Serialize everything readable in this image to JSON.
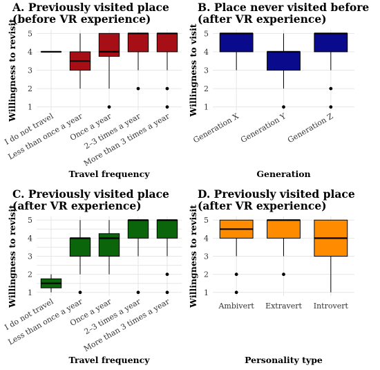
{
  "chart_data": [
    {
      "type": "box",
      "title_lines": [
        "A. Previously visited place",
        "(before VR experience)"
      ],
      "xlabel": "Travel frequency",
      "ylabel": "Willingness to revisit",
      "ylim": [
        0.8,
        5.2
      ],
      "yticks": [
        1,
        2,
        3,
        4,
        5
      ],
      "fill": "#a50f15",
      "categories": [
        "I do not travel",
        "Less than once a year",
        "Once a year",
        "2–3 times a year",
        "More than 3 times a year"
      ],
      "boxes": [
        {
          "q1": 4,
          "median": 4,
          "q3": 4,
          "whisker_low": 4,
          "whisker_high": 4,
          "outliers": []
        },
        {
          "q1": 3,
          "median": 3.5,
          "q3": 4,
          "whisker_low": 2,
          "whisker_high": 5,
          "outliers": []
        },
        {
          "q1": 3.75,
          "median": 4,
          "q3": 5,
          "whisker_low": 2,
          "whisker_high": 5,
          "outliers": [
            1
          ]
        },
        {
          "q1": 4,
          "median": 5,
          "q3": 5,
          "whisker_low": 3,
          "whisker_high": 5,
          "outliers": [
            2
          ]
        },
        {
          "q1": 4,
          "median": 5,
          "q3": 5,
          "whisker_low": 3,
          "whisker_high": 5,
          "outliers": [
            2,
            1
          ]
        }
      ]
    },
    {
      "type": "box",
      "title_lines": [
        "B. Place never visited before",
        "(after VR experience)"
      ],
      "xlabel": "Generation",
      "ylabel": "Willingness to visit",
      "ylim": [
        0.8,
        5.2
      ],
      "yticks": [
        1,
        2,
        3,
        4,
        5
      ],
      "fill": "#0a0a8c",
      "categories": [
        "Generation X",
        "Generation Y",
        "Generation Z"
      ],
      "boxes": [
        {
          "q1": 4,
          "median": 5,
          "q3": 5,
          "whisker_low": 3,
          "whisker_high": 5,
          "outliers": []
        },
        {
          "q1": 3,
          "median": 4,
          "q3": 4,
          "whisker_low": 2,
          "whisker_high": 5,
          "outliers": [
            1
          ]
        },
        {
          "q1": 4,
          "median": 5,
          "q3": 5,
          "whisker_low": 3,
          "whisker_high": 5,
          "outliers": [
            2,
            1
          ]
        }
      ]
    },
    {
      "type": "box",
      "title_lines": [
        "C. Previously visited place",
        "(after VR experience)"
      ],
      "xlabel": "Travel frequency",
      "ylabel": "Willingness to revisit",
      "ylim": [
        0.8,
        5.2
      ],
      "yticks": [
        1,
        1.5,
        2,
        2.5,
        3,
        3.5,
        4,
        4.5,
        5
      ],
      "ytick_labels": [
        "1",
        "",
        "2",
        "",
        "3",
        "",
        "4",
        "",
        "5"
      ],
      "fill": "#0b660b",
      "categories": [
        "I do not travel",
        "Less than once a year",
        "Once a year",
        "2–3 times a year",
        "More than 3 times a year"
      ],
      "boxes": [
        {
          "q1": 1.25,
          "median": 1.5,
          "q3": 1.75,
          "whisker_low": 1,
          "whisker_high": 2,
          "outliers": []
        },
        {
          "q1": 3,
          "median": 4,
          "q3": 4,
          "whisker_low": 2,
          "whisker_high": 5,
          "outliers": [
            1
          ]
        },
        {
          "q1": 3,
          "median": 4,
          "q3": 4.25,
          "whisker_low": 2,
          "whisker_high": 5,
          "outliers": []
        },
        {
          "q1": 4,
          "median": 5,
          "q3": 5,
          "whisker_low": 3,
          "whisker_high": 5,
          "outliers": [
            1
          ]
        },
        {
          "q1": 4,
          "median": 5,
          "q3": 5,
          "whisker_low": 3,
          "whisker_high": 5,
          "outliers": [
            2,
            1
          ]
        }
      ]
    },
    {
      "type": "box",
      "title_lines": [
        "D. Previously visited place",
        "(after VR experience)"
      ],
      "xlabel": "Personality type",
      "ylabel": "Willingness to revisit",
      "ylim": [
        0.8,
        5.2
      ],
      "yticks": [
        1,
        2,
        3,
        4,
        5
      ],
      "fill": "#ff8c00",
      "categories": [
        "Ambivert",
        "Extravert",
        "Introvert"
      ],
      "boxes": [
        {
          "q1": 4,
          "median": 4.5,
          "q3": 5,
          "whisker_low": 3,
          "whisker_high": 5,
          "outliers": [
            2,
            1
          ]
        },
        {
          "q1": 4,
          "median": 5,
          "q3": 5,
          "whisker_low": 3,
          "whisker_high": 5,
          "outliers": [
            2
          ]
        },
        {
          "q1": 3,
          "median": 4,
          "q3": 5,
          "whisker_low": 1,
          "whisker_high": 5,
          "outliers": []
        }
      ]
    }
  ]
}
